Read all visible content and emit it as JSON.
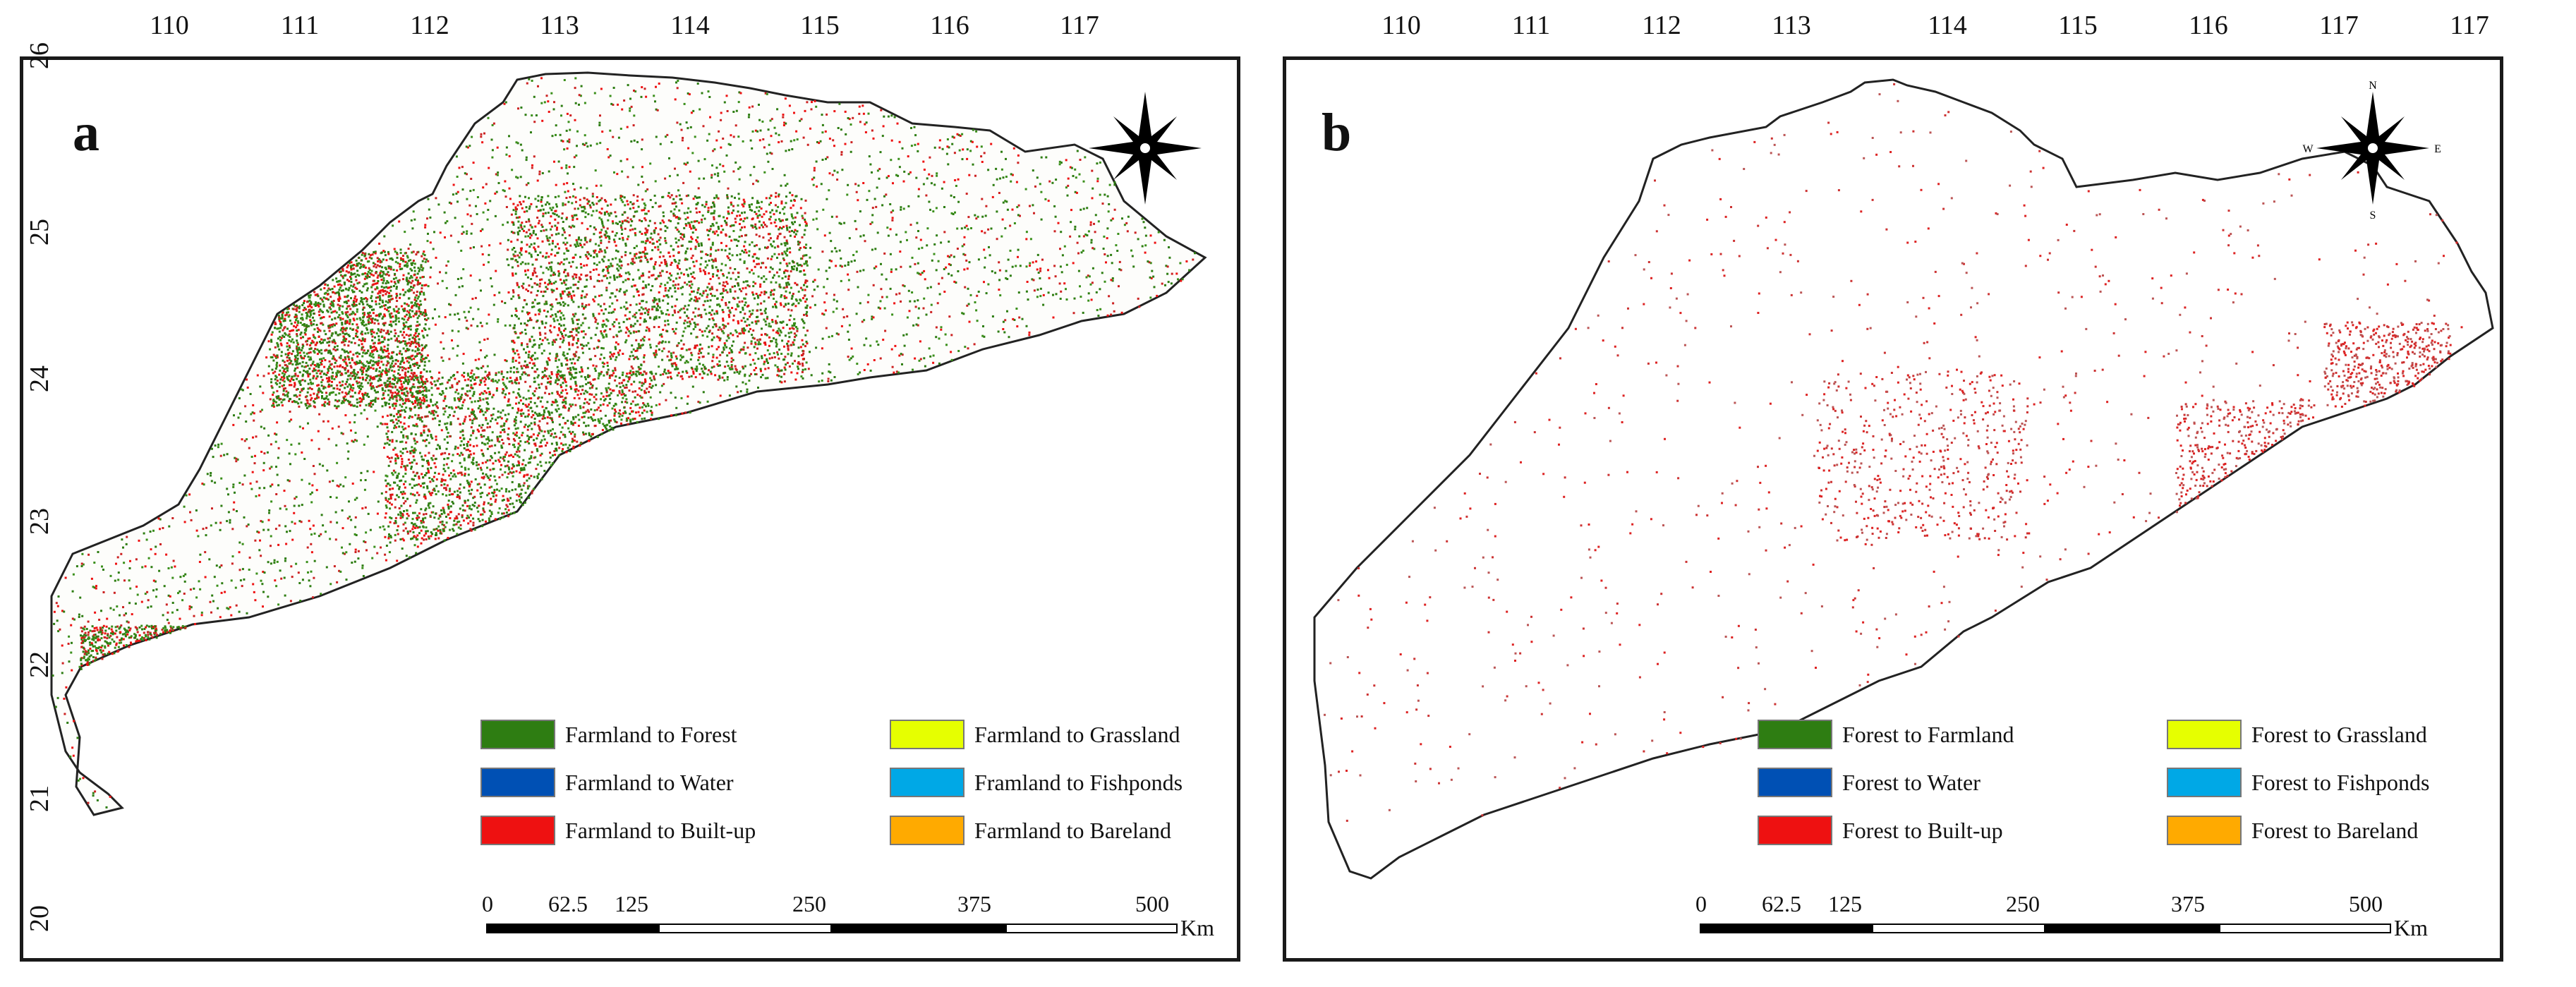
{
  "panels": {
    "a": {
      "letter": "a",
      "longitude_labels": [
        "110",
        "111",
        "112",
        "113",
        "114",
        "115",
        "116",
        "117"
      ],
      "latitude_labels": [
        "26",
        "25",
        "24",
        "23",
        "22",
        "21",
        "20"
      ],
      "legend": [
        {
          "label": "Farmland to Forest",
          "color": "#2e7d12"
        },
        {
          "label": "Farmland to Grassland",
          "color": "#e6ff00"
        },
        {
          "label": "Farmland to Water",
          "color": "#0050b4"
        },
        {
          "label": "Framland to Fishponds",
          "color": "#00a8e6"
        },
        {
          "label": "Farmland to Built-up",
          "color": "#ee1111"
        },
        {
          "label": "Farmland to Bareland",
          "color": "#ffaa00"
        }
      ],
      "scale": {
        "ticks": [
          "0",
          "62.5",
          "125",
          "250",
          "375",
          "500"
        ],
        "unit": "Km"
      }
    },
    "b": {
      "letter": "b",
      "longitude_labels": [
        "110",
        "111",
        "112",
        "113",
        "114",
        "115",
        "116",
        "117",
        "117"
      ],
      "legend": [
        {
          "label": "Forest to Farmland",
          "color": "#2e7d12"
        },
        {
          "label": "Forest to Grassland",
          "color": "#e6ff00"
        },
        {
          "label": "Forest to Water",
          "color": "#0050b4"
        },
        {
          "label": "Forest to Fishponds",
          "color": "#00a8e6"
        },
        {
          "label": "Forest to Built-up",
          "color": "#ee1111"
        },
        {
          "label": "Forest to Bareland",
          "color": "#ffaa00"
        }
      ],
      "scale": {
        "ticks": [
          "0",
          "62.5",
          "125",
          "250",
          "375",
          "500"
        ],
        "unit": "Km"
      }
    }
  },
  "compass": {
    "north": "N",
    "south": "S",
    "east": "E",
    "west": "W"
  }
}
